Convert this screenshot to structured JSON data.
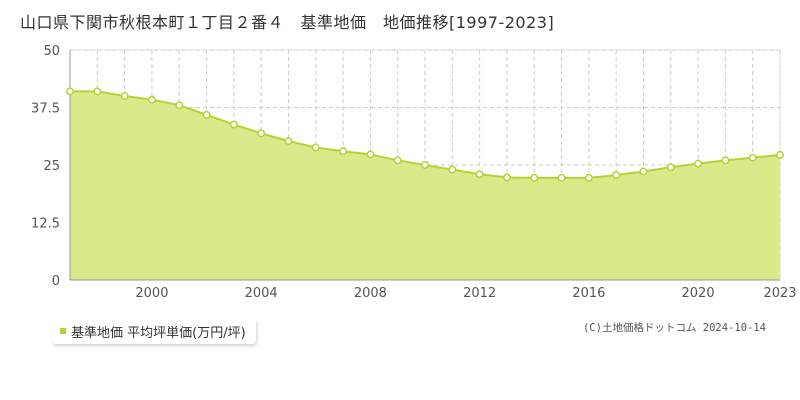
{
  "title": "山口県下関市秋根本町１丁目２番４　基準地価　地価推移[1997-2023]",
  "legend": {
    "label": "基準地価 平均坪単価(万円/坪)",
    "color": "#b5d334"
  },
  "copyright": "(C)土地価格ドットコム 2024-10-14",
  "colors": {
    "fill": "#d9ea8a",
    "line": "#b5d334",
    "marker_fill": "#ffffff",
    "grid": "#cccccc",
    "axis": "#999999",
    "frame": "#e6e6e6"
  },
  "chart_data": {
    "type": "area",
    "title": "",
    "xlabel": "",
    "ylabel": "",
    "x_ticks": [
      "2000",
      "2004",
      "2008",
      "2012",
      "2016",
      "2020",
      "2023"
    ],
    "y_ticks": [
      "0",
      "12.5",
      "25",
      "37.5",
      "50"
    ],
    "xlim": [
      1997,
      2023
    ],
    "ylim": [
      0,
      50
    ],
    "grid": true,
    "legend_position": "bottom-left",
    "series": [
      {
        "name": "基準地価 平均坪単価(万円/坪)",
        "x": [
          1997,
          1998,
          1999,
          2000,
          2001,
          2002,
          2003,
          2004,
          2005,
          2006,
          2007,
          2008,
          2009,
          2010,
          2011,
          2012,
          2013,
          2014,
          2015,
          2016,
          2017,
          2018,
          2019,
          2020,
          2021,
          2022,
          2023
        ],
        "values": [
          41.0,
          41.0,
          40.0,
          39.2,
          38.0,
          35.9,
          33.8,
          31.9,
          30.2,
          28.8,
          28.0,
          27.3,
          26.0,
          25.0,
          24.0,
          23.0,
          22.3,
          22.2,
          22.2,
          22.2,
          22.8,
          23.6,
          24.5,
          25.3,
          26.0,
          26.6,
          27.2
        ]
      }
    ]
  }
}
